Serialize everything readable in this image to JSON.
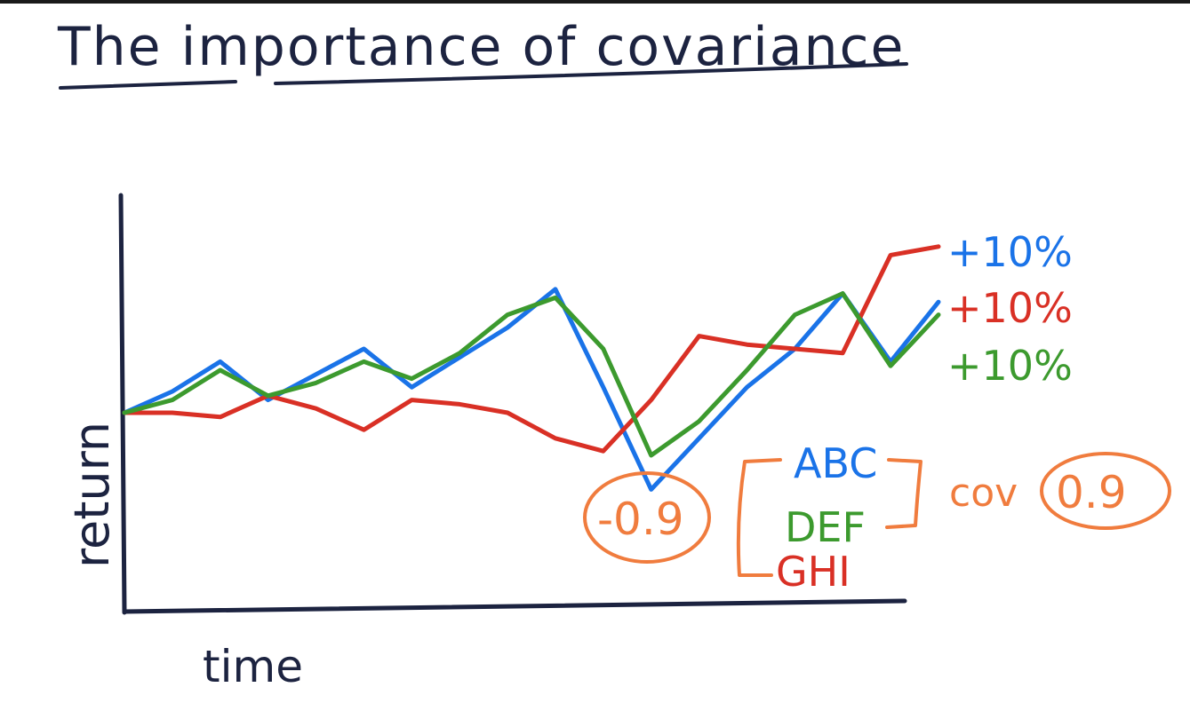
{
  "title": "The importance of covariance",
  "chart_data": {
    "type": "line",
    "xlabel": "time",
    "ylabel": "return",
    "x": [
      0,
      1,
      2,
      3,
      4,
      5,
      6,
      7,
      8,
      9,
      10,
      11,
      12,
      13,
      14,
      15,
      16,
      17
    ],
    "series": [
      {
        "name": "ABC",
        "color": "#1a73e8",
        "ret_label": "+10%",
        "values": [
          0.0,
          0.5,
          1.2,
          0.3,
          0.9,
          1.5,
          0.6,
          1.3,
          2.0,
          2.9,
          0.6,
          -1.8,
          -0.6,
          0.6,
          1.5,
          2.8,
          1.2,
          2.6
        ]
      },
      {
        "name": "GHI",
        "color": "#d93025",
        "ret_label": "+10%",
        "values": [
          0.0,
          0.0,
          -0.1,
          0.4,
          0.1,
          -0.4,
          0.3,
          0.2,
          0.0,
          -0.6,
          -0.9,
          0.3,
          1.8,
          1.6,
          1.5,
          1.4,
          3.7,
          3.9
        ]
      },
      {
        "name": "DEF",
        "color": "#3c9a2e",
        "ret_label": "+10%",
        "values": [
          0.0,
          0.3,
          1.0,
          0.4,
          0.7,
          1.2,
          0.8,
          1.4,
          2.3,
          2.7,
          1.5,
          -1.0,
          -0.2,
          1.0,
          2.3,
          2.8,
          1.1,
          2.3
        ]
      }
    ],
    "annotations": {
      "cov_label": "cov",
      "cov_positive": "0.9",
      "cov_negative": "-0.9",
      "bracket_color": "#f07c3e"
    }
  }
}
